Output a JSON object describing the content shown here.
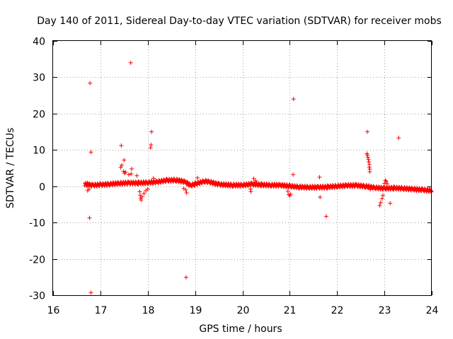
{
  "chart_data": {
    "type": "scatter",
    "title": "Day 140 of 2011, Sidereal Day-to-day VTEC variation (SDTVAR) for receiver mobs",
    "xlabel": "GPS time / hours",
    "ylabel": "SDTVAR / TECUs",
    "xlim": [
      16,
      24
    ],
    "ylim": [
      -30,
      40
    ],
    "xticks": [
      "16",
      "17",
      "18",
      "19",
      "20",
      "21",
      "22",
      "23",
      "24"
    ],
    "yticks": [
      "-30",
      "-20",
      "-10",
      "0",
      "10",
      "20",
      "30",
      "40"
    ],
    "grid": true,
    "marker": "+",
    "color": "#ff0000",
    "series": [
      {
        "name": "SDTVAR",
        "band": [
          [
            16.67,
            0.5
          ],
          [
            16.75,
            0.4
          ],
          [
            16.85,
            0.3
          ],
          [
            17.0,
            0.4
          ],
          [
            17.2,
            0.6
          ],
          [
            17.4,
            0.8
          ],
          [
            17.6,
            0.9
          ],
          [
            17.8,
            0.9
          ],
          [
            18.0,
            1.0
          ],
          [
            18.2,
            1.2
          ],
          [
            18.4,
            1.6
          ],
          [
            18.6,
            1.7
          ],
          [
            18.8,
            1.2
          ],
          [
            18.9,
            0.2
          ],
          [
            19.0,
            0.6
          ],
          [
            19.2,
            1.4
          ],
          [
            19.3,
            1.2
          ],
          [
            19.5,
            0.5
          ],
          [
            19.8,
            0.3
          ],
          [
            20.0,
            0.3
          ],
          [
            20.2,
            0.6
          ],
          [
            20.4,
            0.4
          ],
          [
            20.6,
            0.3
          ],
          [
            20.8,
            0.3
          ],
          [
            21.0,
            0.0
          ],
          [
            21.2,
            -0.2
          ],
          [
            21.4,
            -0.3
          ],
          [
            21.6,
            -0.3
          ],
          [
            21.8,
            -0.2
          ],
          [
            22.0,
            0.0
          ],
          [
            22.2,
            0.2
          ],
          [
            22.4,
            0.2
          ],
          [
            22.6,
            0.0
          ],
          [
            22.8,
            -0.4
          ],
          [
            23.0,
            -0.6
          ],
          [
            23.2,
            -0.5
          ],
          [
            23.4,
            -0.6
          ],
          [
            23.6,
            -0.8
          ],
          [
            23.8,
            -1.0
          ],
          [
            24.0,
            -1.2
          ]
        ],
        "points": [
          [
            16.78,
            28.4
          ],
          [
            16.8,
            9.4
          ],
          [
            16.77,
            -8.7
          ],
          [
            16.8,
            -29.3
          ],
          [
            16.73,
            -1.2
          ],
          [
            16.76,
            -0.8
          ],
          [
            16.72,
            1.0
          ],
          [
            17.44,
            11.2
          ],
          [
            17.45,
            5.8
          ],
          [
            17.43,
            5.2
          ],
          [
            17.5,
            7.2
          ],
          [
            17.49,
            4.1
          ],
          [
            17.51,
            3.6
          ],
          [
            17.53,
            3.9
          ],
          [
            17.6,
            3.2
          ],
          [
            17.64,
            34.0
          ],
          [
            17.66,
            4.8
          ],
          [
            17.65,
            3.4
          ],
          [
            17.77,
            2.9
          ],
          [
            17.83,
            -1.5
          ],
          [
            17.84,
            -2.5
          ],
          [
            17.85,
            -3.3
          ],
          [
            17.86,
            -3.8
          ],
          [
            17.88,
            -2.9
          ],
          [
            17.92,
            -2.0
          ],
          [
            17.96,
            -1.2
          ],
          [
            18.0,
            -0.8
          ],
          [
            18.08,
            15.0
          ],
          [
            18.07,
            11.4
          ],
          [
            18.06,
            10.6
          ],
          [
            18.12,
            2.2
          ],
          [
            18.76,
            -0.6
          ],
          [
            18.8,
            -1.0
          ],
          [
            18.82,
            -1.8
          ],
          [
            18.81,
            -25.1
          ],
          [
            19.05,
            2.3
          ],
          [
            20.17,
            -0.8
          ],
          [
            20.18,
            -1.5
          ],
          [
            20.24,
            2.1
          ],
          [
            20.28,
            1.5
          ],
          [
            20.96,
            -1.4
          ],
          [
            20.98,
            -2.3
          ],
          [
            21.0,
            -2.6
          ],
          [
            21.02,
            -2.2
          ],
          [
            21.08,
            24.0
          ],
          [
            21.07,
            3.2
          ],
          [
            21.63,
            2.5
          ],
          [
            21.64,
            -3.0
          ],
          [
            21.77,
            -8.3
          ],
          [
            22.64,
            15.0
          ],
          [
            22.63,
            9.0
          ],
          [
            22.64,
            8.6
          ],
          [
            22.65,
            8.0
          ],
          [
            22.66,
            7.4
          ],
          [
            22.67,
            6.7
          ],
          [
            22.68,
            6.0
          ],
          [
            22.68,
            5.3
          ],
          [
            22.69,
            4.7
          ],
          [
            22.69,
            4.0
          ],
          [
            22.7,
            -0.9
          ],
          [
            22.9,
            -5.3
          ],
          [
            22.92,
            -4.5
          ],
          [
            22.95,
            -3.4
          ],
          [
            22.97,
            -2.5
          ],
          [
            23.0,
            0.8
          ],
          [
            23.02,
            1.6
          ],
          [
            23.04,
            1.3
          ],
          [
            23.06,
            0.7
          ],
          [
            23.12,
            -4.7
          ],
          [
            23.3,
            13.3
          ]
        ]
      }
    ]
  }
}
